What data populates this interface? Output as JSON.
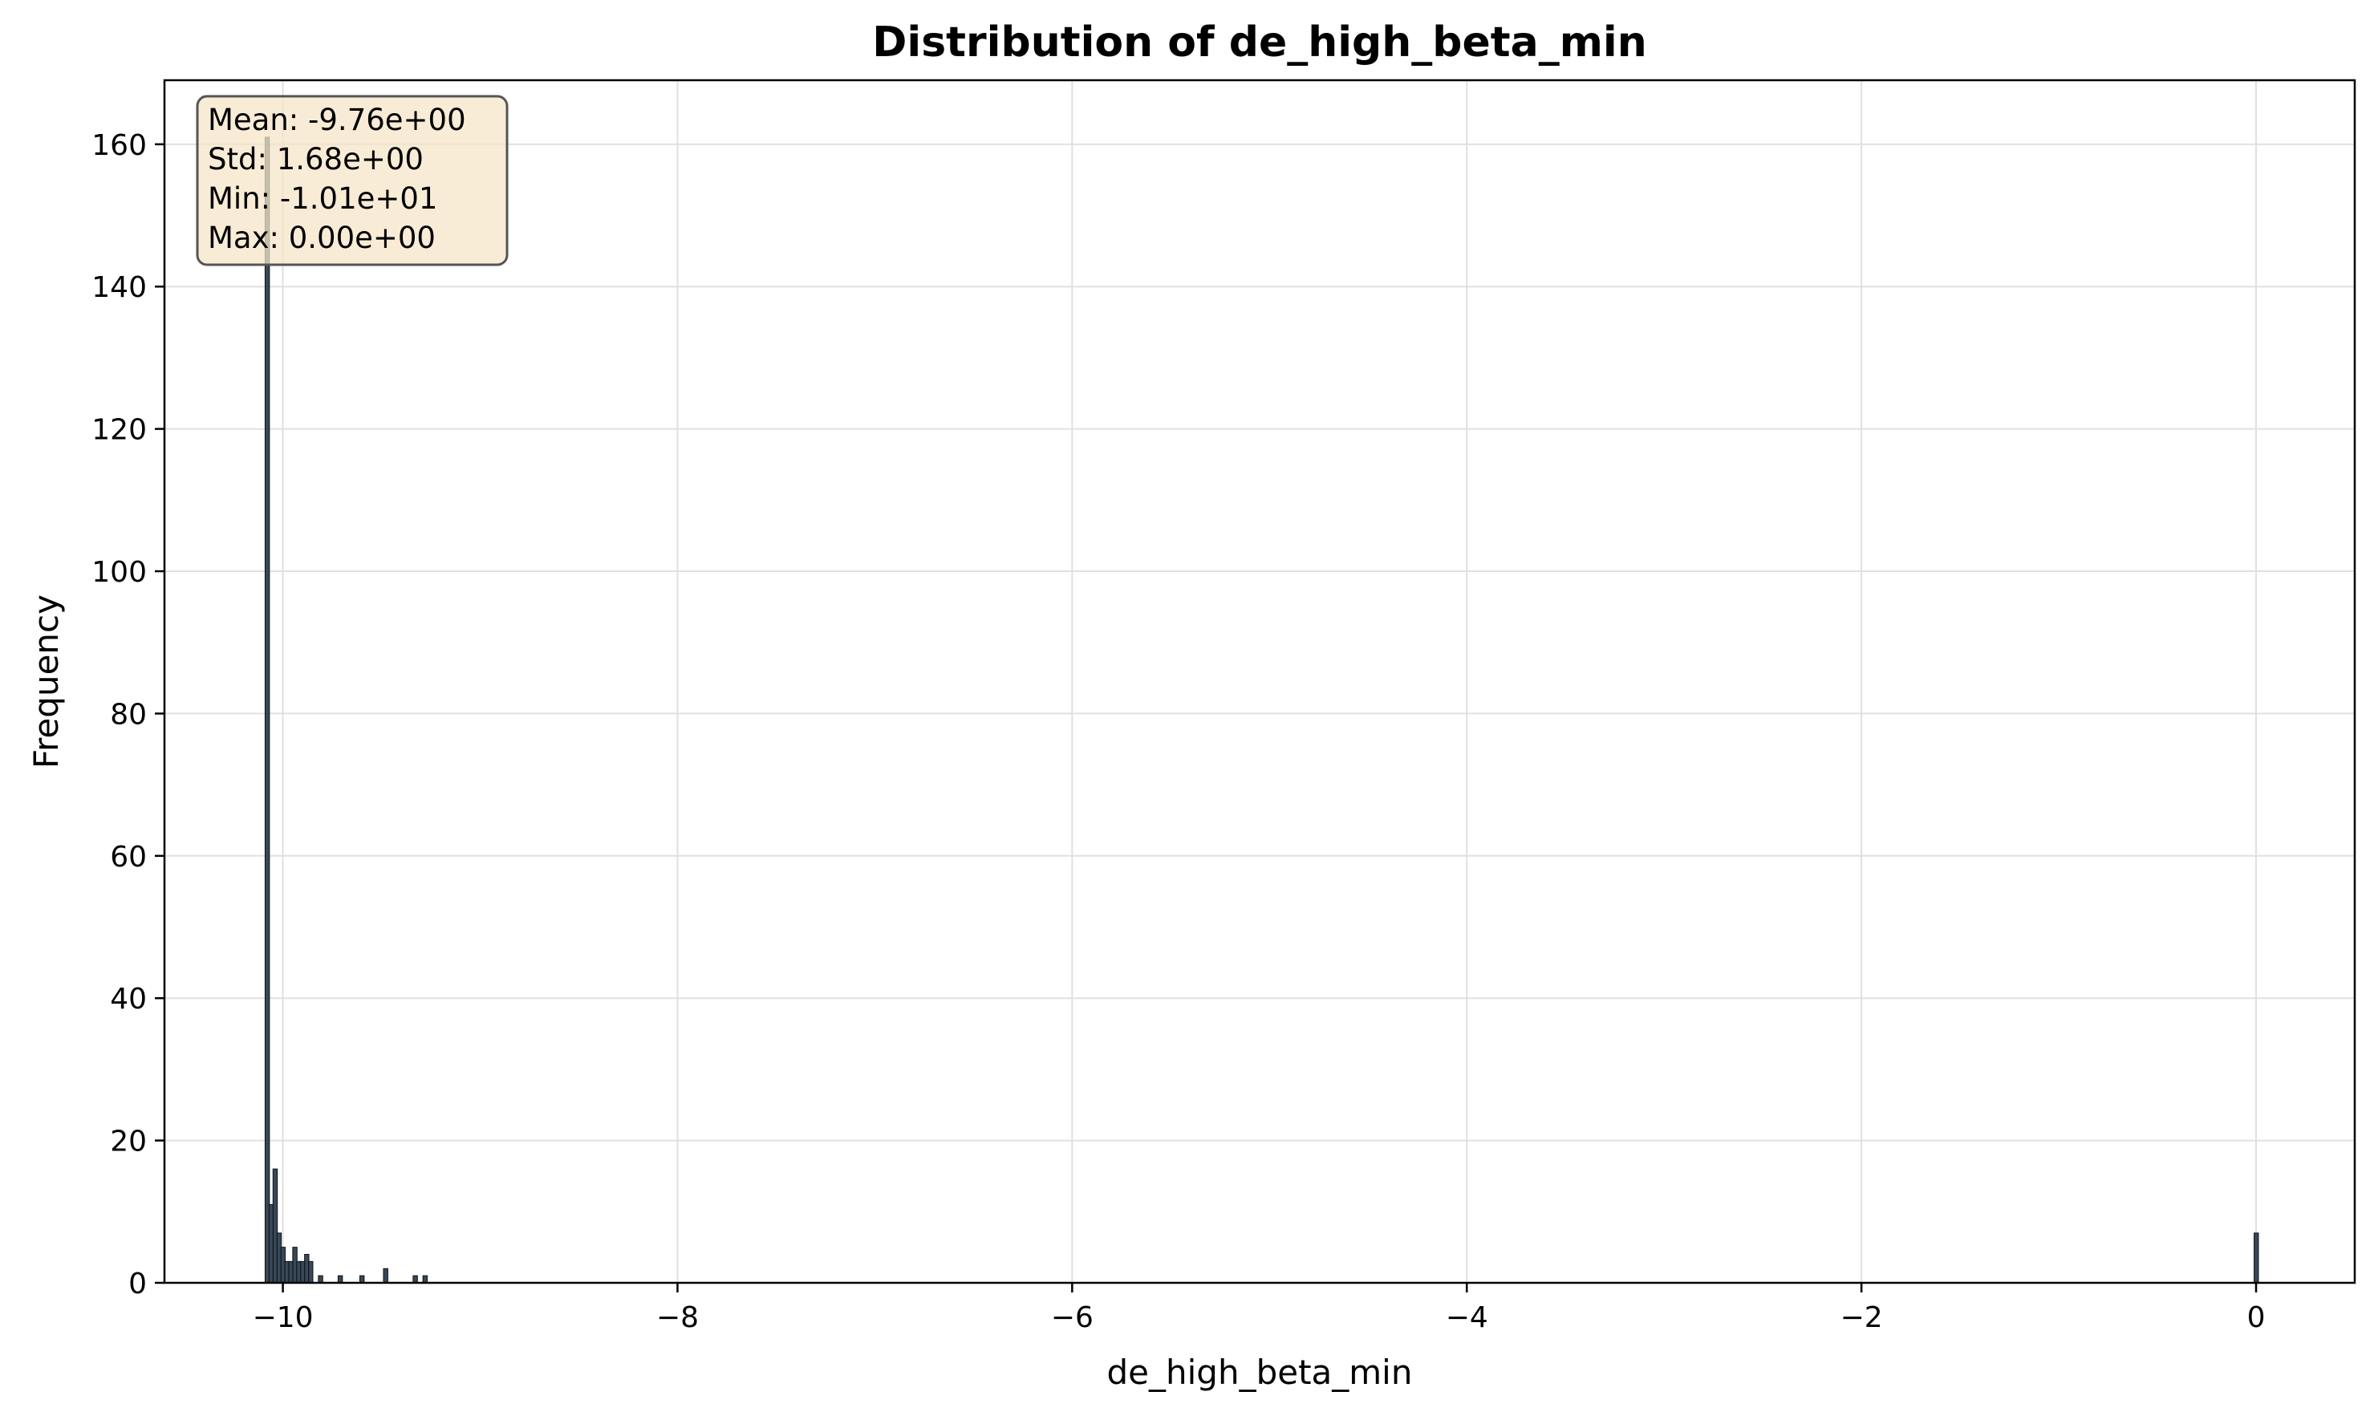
{
  "chart_data": {
    "type": "bar",
    "title": "Distribution of de_high_beta_min",
    "xlabel": "de_high_beta_min",
    "ylabel": "Frequency",
    "xlim": [
      -10.6,
      0.5
    ],
    "ylim": [
      0,
      169
    ],
    "xticks": [
      -10,
      -8,
      -6,
      -4,
      -2,
      0
    ],
    "xtick_labels": [
      "−10",
      "−8",
      "−6",
      "−4",
      "−2",
      "0"
    ],
    "yticks": [
      0,
      20,
      40,
      60,
      80,
      100,
      120,
      140,
      160
    ],
    "ytick_labels": [
      "0",
      "20",
      "40",
      "60",
      "80",
      "100",
      "120",
      "140",
      "160"
    ],
    "grid": true,
    "bin_width": 0.022,
    "bar_color": "#2c3e50",
    "bins": [
      {
        "x": -10.09,
        "count": 161
      },
      {
        "x": -10.07,
        "count": 11
      },
      {
        "x": -10.05,
        "count": 16
      },
      {
        "x": -10.03,
        "count": 7
      },
      {
        "x": -10.01,
        "count": 5
      },
      {
        "x": -9.99,
        "count": 3
      },
      {
        "x": -9.97,
        "count": 3
      },
      {
        "x": -9.95,
        "count": 5
      },
      {
        "x": -9.93,
        "count": 3
      },
      {
        "x": -9.91,
        "count": 3
      },
      {
        "x": -9.89,
        "count": 4
      },
      {
        "x": -9.87,
        "count": 3
      },
      {
        "x": -9.82,
        "count": 1
      },
      {
        "x": -9.72,
        "count": 1
      },
      {
        "x": -9.61,
        "count": 1
      },
      {
        "x": -9.49,
        "count": 2
      },
      {
        "x": -9.34,
        "count": 1
      },
      {
        "x": -9.29,
        "count": 1
      },
      {
        "x": -0.01,
        "count": 7
      }
    ],
    "stats_box": {
      "lines": [
        "Mean: -9.76e+00",
        "Std: 1.68e+00",
        "Min: -1.01e+01",
        "Max: 0.00e+00"
      ],
      "placement": "top-left",
      "background": "#f5e6c8",
      "border": "#555555"
    },
    "colors": {
      "grid": "#e0e0e0",
      "axes": "#000000"
    }
  }
}
